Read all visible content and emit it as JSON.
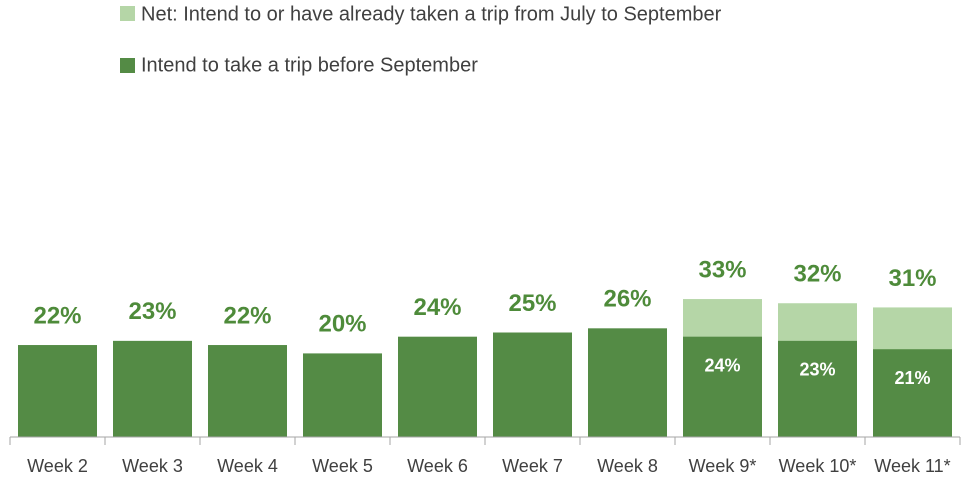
{
  "chart_data": {
    "type": "bar",
    "categories": [
      "Week 2",
      "Week 3",
      "Week 4",
      "Week 5",
      "Week 6",
      "Week 7",
      "Week 8",
      "Week 9*",
      "Week 10*",
      "Week 11*"
    ],
    "series": [
      {
        "name": "Net: Intend to or have already taken a trip from July to September",
        "color": "#b5d6a7",
        "values": [
          null,
          null,
          null,
          null,
          null,
          null,
          null,
          33,
          32,
          31
        ],
        "value_labels": [
          null,
          null,
          null,
          null,
          null,
          null,
          null,
          "33%",
          "32%",
          "31%"
        ]
      },
      {
        "name": "Intend to take a trip before September",
        "color": "#548b45",
        "values": [
          22,
          23,
          22,
          20,
          24,
          25,
          26,
          24,
          23,
          21
        ],
        "value_labels": [
          "22%",
          "23%",
          "22%",
          "20%",
          "24%",
          "25%",
          "26%",
          "24%",
          "23%",
          "21%"
        ]
      }
    ],
    "ylim": [
      0,
      100
    ]
  }
}
